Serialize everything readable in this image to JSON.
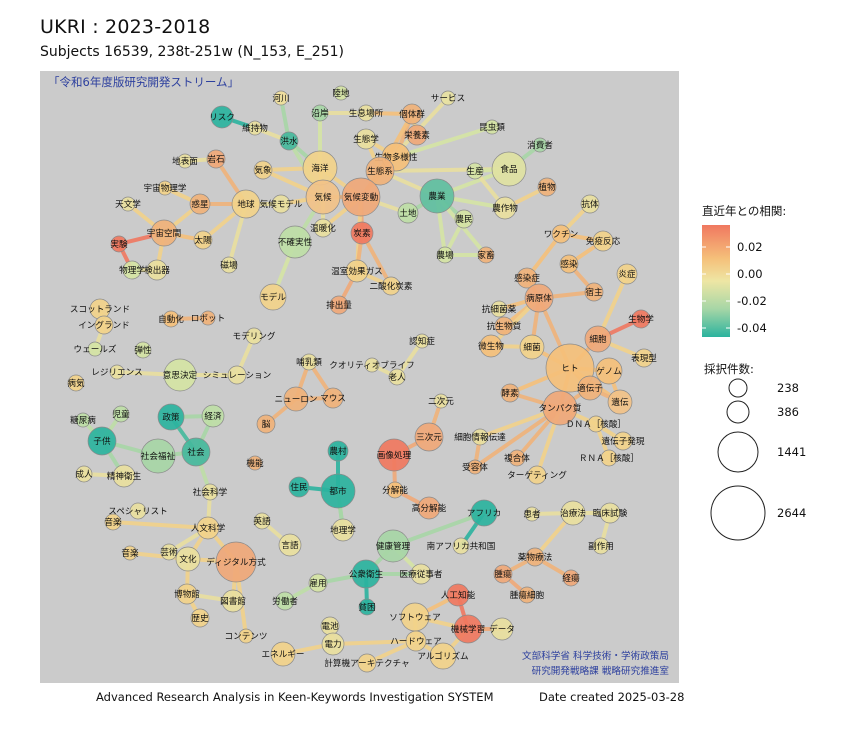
{
  "title": "UKRI : 2023-2018",
  "subtitle": "Subjects 16539, 238t-251w (N_153, E_251)",
  "panel_label": "「令和6年度版研究開発ストリーム」",
  "credit": [
    "文部科学省 科学技術・学術政策局",
    "研究開発戦略課 戦略研究推進室"
  ],
  "footer": {
    "left": "Advanced Research Analysis in Keen-Keywords Investigation SYSTEM",
    "right": "Date created 2025-03-28"
  },
  "legend": {
    "color_title": "直近年との相関:",
    "color_ticks": [
      "0.02",
      "0.00",
      "-0.02",
      "-0.04"
    ],
    "colors": {
      "high": "#f07860",
      "mid_high": "#f5c07a",
      "mid": "#eee6a4",
      "mid_low": "#a6d6a6",
      "low": "#2bb39e"
    },
    "size_title": "採択件数:",
    "size_ticks": [
      "238",
      "386",
      "1441",
      "2644"
    ]
  },
  "nodes": [
    {
      "label": "リスク",
      "r": 11,
      "c": "#2bb39e"
    },
    {
      "label": "維持物",
      "r": 7,
      "c": "#e9df9e"
    },
    {
      "label": "河川",
      "r": 7,
      "c": "#f1e09c"
    },
    {
      "label": "沿岸",
      "r": 8,
      "c": "#a7d6a6"
    },
    {
      "label": "陸地",
      "r": 7,
      "c": "#d5e4a4"
    },
    {
      "label": "生息場所",
      "r": 8,
      "c": "#e9df9e"
    },
    {
      "label": "個体群",
      "r": 10,
      "c": "#f0b27a"
    },
    {
      "label": "サービス",
      "r": 7,
      "c": "#e8e2a2"
    },
    {
      "label": "昆虫類",
      "r": 7,
      "c": "#d5e4a4"
    },
    {
      "label": "栄養素",
      "r": 10,
      "c": "#f0a878"
    },
    {
      "label": "洪水",
      "r": 9,
      "c": "#45b99c"
    },
    {
      "label": "生態学",
      "r": 10,
      "c": "#e9df9e"
    },
    {
      "label": "消費者",
      "r": 7,
      "c": "#a7d6a6"
    },
    {
      "label": "地表面",
      "r": 7,
      "c": "#e9df9e"
    },
    {
      "label": "岩石",
      "r": 9,
      "c": "#f0a878"
    },
    {
      "label": "気象",
      "r": 9,
      "c": "#f2d28a"
    },
    {
      "label": "海洋",
      "r": 17,
      "c": "#f2d28a"
    },
    {
      "label": "生物多様性",
      "r": 14,
      "c": "#f5c07a"
    },
    {
      "label": "生態系",
      "r": 14,
      "c": "#f0b27a"
    },
    {
      "label": "食品",
      "r": 17,
      "c": "#e0e2a2"
    },
    {
      "label": "生産",
      "r": 8,
      "c": "#d5e4a4"
    },
    {
      "label": "宇宙物理学",
      "r": 7,
      "c": "#f2d28a"
    },
    {
      "label": "惑星",
      "r": 10,
      "c": "#f0b27a"
    },
    {
      "label": "天文学",
      "r": 7,
      "c": "#e9df9e"
    },
    {
      "label": "地球",
      "r": 14,
      "c": "#f2d28a"
    },
    {
      "label": "気候モデル",
      "r": 9,
      "c": "#e9df9e"
    },
    {
      "label": "気候",
      "r": 17,
      "c": "#f2c288"
    },
    {
      "label": "気候変動",
      "r": 19,
      "c": "#f0a878"
    },
    {
      "label": "土地",
      "r": 10,
      "c": "#bedea6"
    },
    {
      "label": "農業",
      "r": 17,
      "c": "#60bfa0"
    },
    {
      "label": "農作物",
      "r": 11,
      "c": "#e9df9e"
    },
    {
      "label": "植物",
      "r": 9,
      "c": "#f0b27a"
    },
    {
      "label": "抗体",
      "r": 9,
      "c": "#e9df9e"
    },
    {
      "label": "宇宙空間",
      "r": 13,
      "c": "#f0b27a"
    },
    {
      "label": "太陽",
      "r": 9,
      "c": "#f2d28a"
    },
    {
      "label": "温暖化",
      "r": 9,
      "c": "#e9df9e"
    },
    {
      "label": "炭素",
      "r": 11,
      "c": "#f07860"
    },
    {
      "label": "農民",
      "r": 9,
      "c": "#d5e4a4"
    },
    {
      "label": "不確実性",
      "r": 16,
      "c": "#bedea6"
    },
    {
      "label": "ワクチン",
      "r": 9,
      "c": "#f5c07a"
    },
    {
      "label": "免疫反応",
      "r": 10,
      "c": "#f2d28a"
    },
    {
      "label": "実験",
      "r": 8,
      "c": "#f07860"
    },
    {
      "label": "磁場",
      "r": 8,
      "c": "#e9df9e"
    },
    {
      "label": "温室効果ガス",
      "r": 11,
      "c": "#f2d28a"
    },
    {
      "label": "農場",
      "r": 8,
      "c": "#d5e4a4"
    },
    {
      "label": "家畜",
      "r": 8,
      "c": "#f0b27a"
    },
    {
      "label": "感染",
      "r": 9,
      "c": "#f5c07a"
    },
    {
      "label": "炎症",
      "r": 10,
      "c": "#f2d28a"
    },
    {
      "label": "物理学",
      "r": 9,
      "c": "#d5e4a4"
    },
    {
      "label": "検出器",
      "r": 10,
      "c": "#e9df9e"
    },
    {
      "label": "二酸化炭素",
      "r": 9,
      "c": "#f2d28a"
    },
    {
      "label": "感染症",
      "r": 10,
      "c": "#f0b27a"
    },
    {
      "label": "宿主",
      "r": 9,
      "c": "#f0b27a"
    },
    {
      "label": "排出量",
      "r": 9,
      "c": "#f0a878"
    },
    {
      "label": "モデル",
      "r": 13,
      "c": "#f2d28a"
    },
    {
      "label": "病原体",
      "r": 14,
      "c": "#f0a878"
    },
    {
      "label": "生物学",
      "r": 9,
      "c": "#f07860"
    },
    {
      "label": "スコットランド",
      "r": 10,
      "c": "#f2d28a"
    },
    {
      "label": "自動化",
      "r": 8,
      "c": "#f5c07a"
    },
    {
      "label": "ロボット",
      "r": 7,
      "c": "#f0b27a"
    },
    {
      "label": "抗細菌薬",
      "r": 8,
      "c": "#e9df9e"
    },
    {
      "label": "イングランド",
      "r": 9,
      "c": "#f2d28a"
    },
    {
      "label": "抗生物質",
      "r": 9,
      "c": "#f0b27a"
    },
    {
      "label": "細胞",
      "r": 13,
      "c": "#f0a878"
    },
    {
      "label": "モデリング",
      "r": 8,
      "c": "#e9df9e"
    },
    {
      "label": "表現型",
      "r": 9,
      "c": "#f2d28a"
    },
    {
      "label": "ウェールズ",
      "r": 7,
      "c": "#d5e4a4"
    },
    {
      "label": "弾性",
      "r": 8,
      "c": "#d5e4a4"
    },
    {
      "label": "認知症",
      "r": 7,
      "c": "#e9df9e"
    },
    {
      "label": "微生物",
      "r": 11,
      "c": "#f5c07a"
    },
    {
      "label": "細菌",
      "r": 12,
      "c": "#f2d28a"
    },
    {
      "label": "ヒト",
      "r": 24,
      "c": "#f5c07a"
    },
    {
      "label": "ゲノム",
      "r": 13,
      "c": "#f5c07a"
    },
    {
      "label": "哺乳類",
      "r": 8,
      "c": "#e9df9e"
    },
    {
      "label": "クオリティオブライフ",
      "r": 7,
      "c": "#e9df9e"
    },
    {
      "label": "レジリエンス",
      "r": 7,
      "c": "#e9df9e"
    },
    {
      "label": "意思決定",
      "r": 16,
      "c": "#d5e4a4"
    },
    {
      "label": "シミュレーション",
      "r": 9,
      "c": "#e9df9e"
    },
    {
      "label": "老人",
      "r": 8,
      "c": "#e9df9e"
    },
    {
      "label": "病気",
      "r": 8,
      "c": "#f2d28a"
    },
    {
      "label": "適伝子",
      "r": 12,
      "c": "#f0b27a"
    },
    {
      "label": "酵素",
      "r": 9,
      "c": "#f0b27a"
    },
    {
      "label": "ニューロン",
      "r": 12,
      "c": "#f0b27a"
    },
    {
      "label": "マウス",
      "r": 10,
      "c": "#f0b27a"
    },
    {
      "label": "二次元",
      "r": 7,
      "c": "#e9df9e"
    },
    {
      "label": "遺伝",
      "r": 12,
      "c": "#f2c288"
    },
    {
      "label": "タンパク質",
      "r": 17,
      "c": "#f0a878"
    },
    {
      "label": "糖尿病",
      "r": 7,
      "c": "#bedea6"
    },
    {
      "label": "児童",
      "r": 8,
      "c": "#bedea6"
    },
    {
      "label": "政策",
      "r": 13,
      "c": "#2bb39e"
    },
    {
      "label": "経済",
      "r": 11,
      "c": "#bedea6"
    },
    {
      "label": "ＤＮＡ［核酸］",
      "r": 8,
      "c": "#f2d28a"
    },
    {
      "label": "子供",
      "r": 14,
      "c": "#2bb39e"
    },
    {
      "label": "三次元",
      "r": 14,
      "c": "#f0a878"
    },
    {
      "label": "遺伝子発現",
      "r": 9,
      "c": "#f2d28a"
    },
    {
      "label": "脳",
      "r": 9,
      "c": "#f0b27a"
    },
    {
      "label": "細胞情報伝達",
      "r": 8,
      "c": "#e9df9e"
    },
    {
      "label": "ＲＮＡ［核酸］",
      "r": 8,
      "c": "#f2d28a"
    },
    {
      "label": "社会福祉",
      "r": 17,
      "c": "#a7d6a6"
    },
    {
      "label": "社会",
      "r": 14,
      "c": "#45b99c"
    },
    {
      "label": "精神衛生",
      "r": 11,
      "c": "#e9df9e"
    },
    {
      "label": "農村",
      "r": 10,
      "c": "#2bb39e"
    },
    {
      "label": "画像処理",
      "r": 16,
      "c": "#f07860"
    },
    {
      "label": "複合体",
      "r": 8,
      "c": "#f0b27a"
    },
    {
      "label": "成人",
      "r": 8,
      "c": "#e9df9e"
    },
    {
      "label": "機能",
      "r": 7,
      "c": "#f0b27a"
    },
    {
      "label": "受容体",
      "r": 7,
      "c": "#f0b27a"
    },
    {
      "label": "ターゲティング",
      "r": 9,
      "c": "#f2d28a"
    },
    {
      "label": "住民",
      "r": 10,
      "c": "#2bb39e"
    },
    {
      "label": "都市",
      "r": 17,
      "c": "#2bb39e"
    },
    {
      "label": "分解能",
      "r": 8,
      "c": "#f5c07a"
    },
    {
      "label": "社会科学",
      "r": 8,
      "c": "#e9df9e"
    },
    {
      "label": "スペシャリスト",
      "r": 8,
      "c": "#e9df9e"
    },
    {
      "label": "高分解能",
      "r": 11,
      "c": "#f0a878"
    },
    {
      "label": "アフリカ",
      "r": 13,
      "c": "#2bb39e"
    },
    {
      "label": "患者",
      "r": 7,
      "c": "#e9df9e"
    },
    {
      "label": "治療法",
      "r": 12,
      "c": "#e9df9e"
    },
    {
      "label": "臨床試験",
      "r": 10,
      "c": "#e9df9e"
    },
    {
      "label": "人文科学",
      "r": 11,
      "c": "#f2d28a"
    },
    {
      "label": "音楽",
      "r": 8,
      "c": "#f2d28a"
    },
    {
      "label": "英語",
      "r": 8,
      "c": "#e9df9e"
    },
    {
      "label": "地理学",
      "r": 11,
      "c": "#e9df9e"
    },
    {
      "label": "南アフリカ共和国",
      "r": 8,
      "c": "#e9df9e"
    },
    {
      "label": "健康管理",
      "r": 16,
      "c": "#a7d6a6"
    },
    {
      "label": "副作用",
      "r": 8,
      "c": "#e9df9e"
    },
    {
      "label": "言語",
      "r": 11,
      "c": "#e9df9e"
    },
    {
      "label": "芸術",
      "r": 8,
      "c": "#e9df9e"
    },
    {
      "label": "音楽2",
      "r": 7,
      "c": "#f2d28a"
    },
    {
      "label": "文化",
      "r": 12,
      "c": "#e9df9e"
    },
    {
      "label": "ディジタル方式",
      "r": 20,
      "c": "#f0a878"
    },
    {
      "label": "薬物療法",
      "r": 9,
      "c": "#f0b27a"
    },
    {
      "label": "公衆衛生",
      "r": 14,
      "c": "#2bb39e"
    },
    {
      "label": "医療従事者",
      "r": 10,
      "c": "#e9df9e"
    },
    {
      "label": "腫瘍",
      "r": 9,
      "c": "#f0a878"
    },
    {
      "label": "雇用",
      "r": 9,
      "c": "#d5e4a4"
    },
    {
      "label": "経瘍",
      "r": 8,
      "c": "#f0a878"
    },
    {
      "label": "博物館",
      "r": 10,
      "c": "#f2d28a"
    },
    {
      "label": "図書館",
      "r": 11,
      "c": "#e9df9e"
    },
    {
      "label": "腫瘍細胞",
      "r": 8,
      "c": "#f0b27a"
    },
    {
      "label": "労働者",
      "r": 9,
      "c": "#bedea6"
    },
    {
      "label": "人工知能",
      "r": 11,
      "c": "#f07860"
    },
    {
      "label": "貧困",
      "r": 8,
      "c": "#2bb39e"
    },
    {
      "label": "歴史",
      "r": 9,
      "c": "#f2d28a"
    },
    {
      "label": "ソフトウェア",
      "r": 14,
      "c": "#f2d28a"
    },
    {
      "label": "機械学習",
      "r": 14,
      "c": "#f07860"
    },
    {
      "label": "データ",
      "r": 11,
      "c": "#e9df9e"
    },
    {
      "label": "電池",
      "r": 9,
      "c": "#e9df9e"
    },
    {
      "label": "コンテンツ",
      "r": 7,
      "c": "#f2d28a"
    },
    {
      "label": "ハードウェア",
      "r": 10,
      "c": "#f2d28a"
    },
    {
      "label": "エネルギー",
      "r": 12,
      "c": "#f2d28a"
    },
    {
      "label": "電力",
      "r": 11,
      "c": "#e9df9e"
    },
    {
      "label": "アルゴリズム",
      "r": 13,
      "c": "#f2d28a"
    },
    {
      "label": "計算機アーキテクチャ",
      "r": 9,
      "c": "#f2d28a"
    }
  ]
}
